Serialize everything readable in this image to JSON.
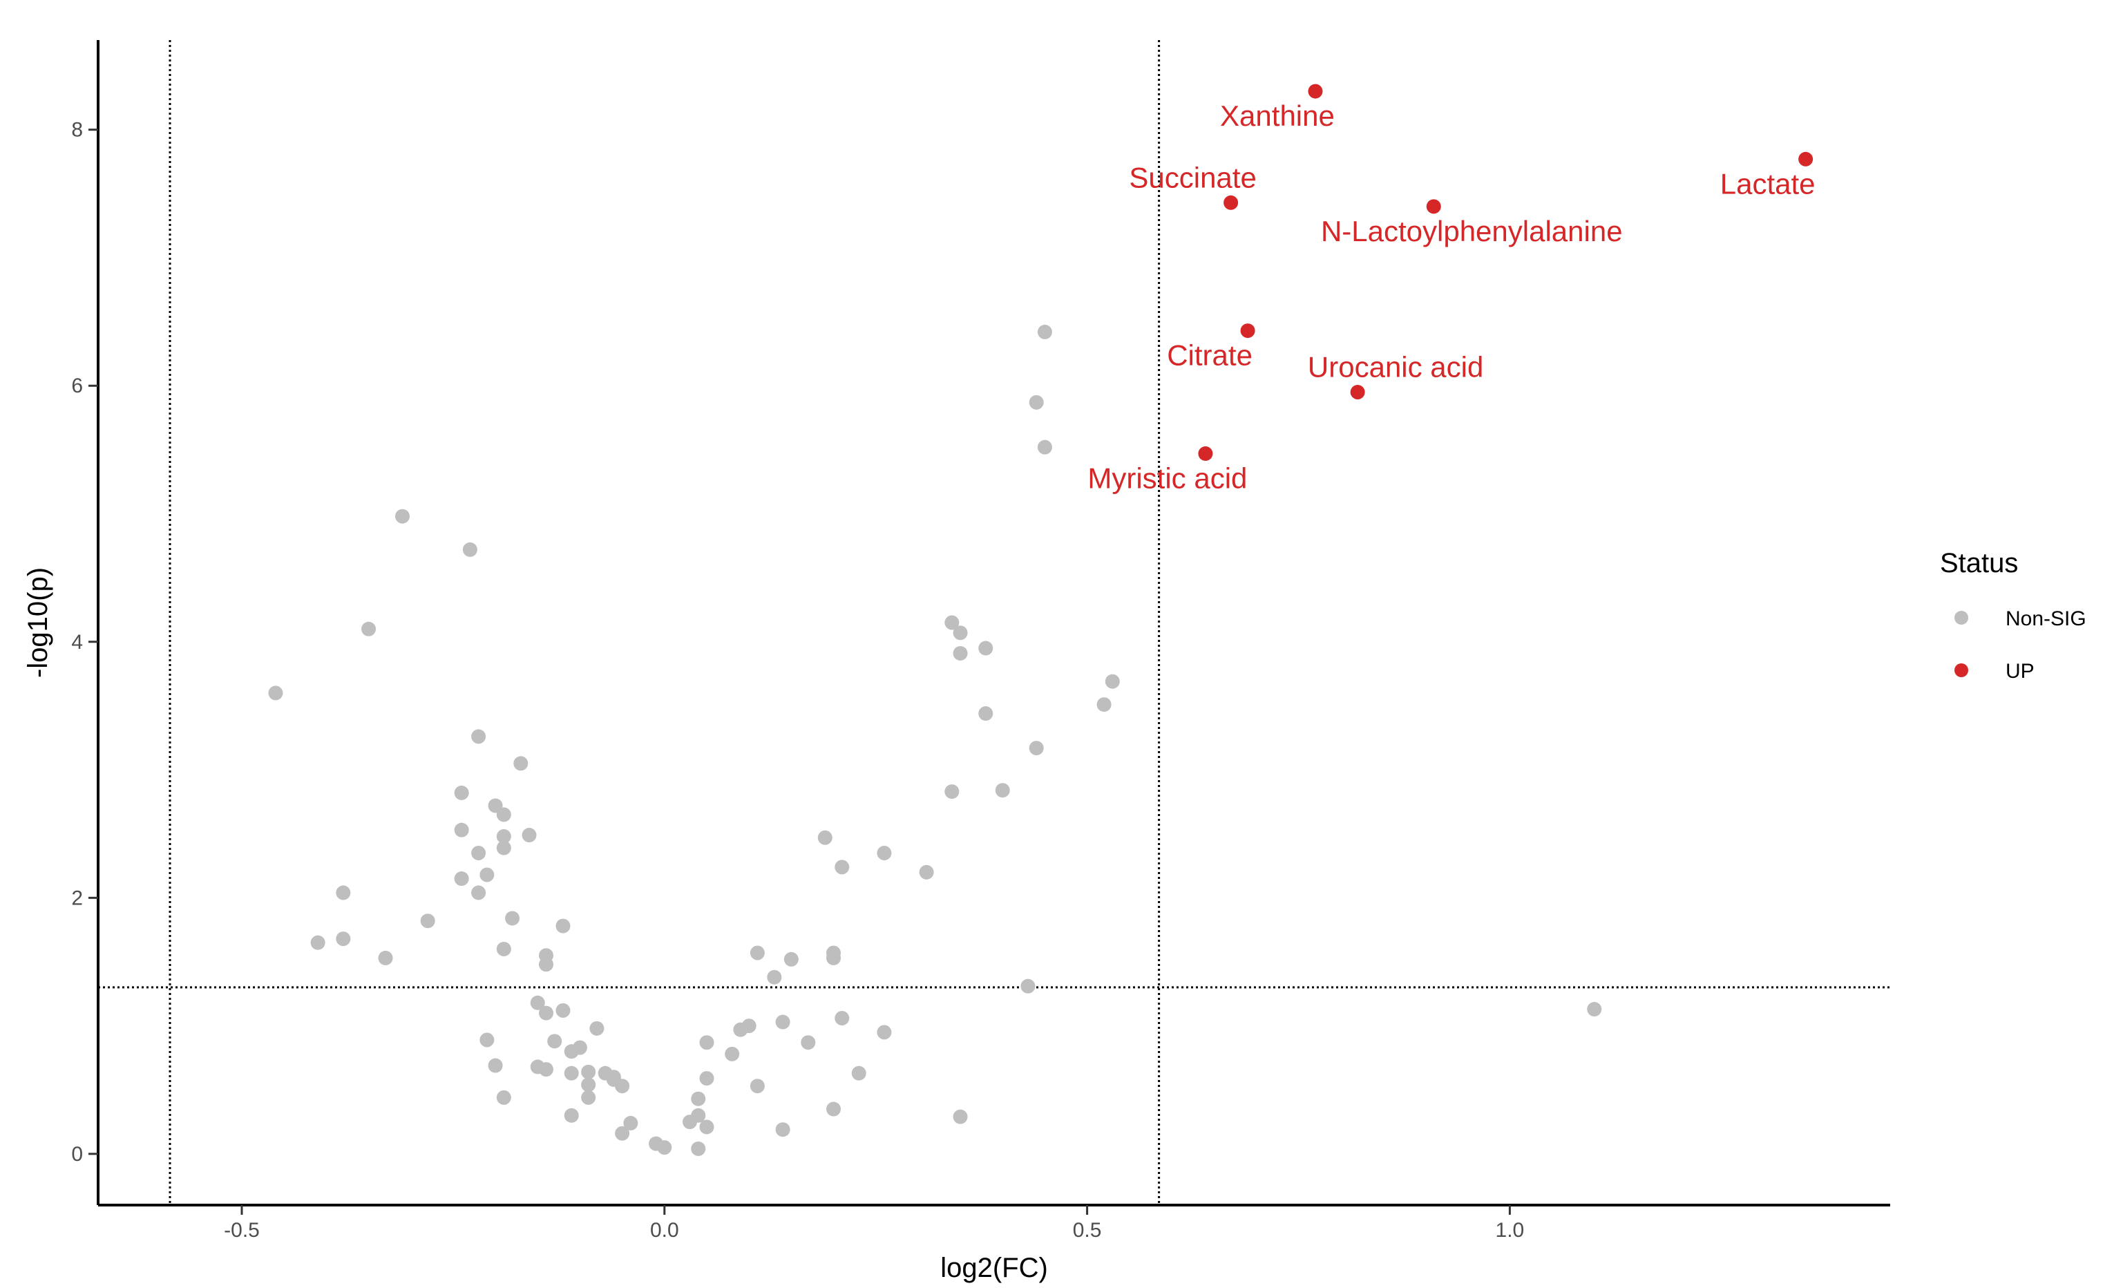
{
  "chart_data": {
    "type": "scatter",
    "title": "",
    "xlabel": "log2(FC)",
    "ylabel": "-log10(p)",
    "xlim": [
      -0.67,
      1.45
    ],
    "ylim": [
      -0.4,
      8.7
    ],
    "x_ticks": [
      -0.5,
      0.0,
      0.5,
      1.0
    ],
    "x_tick_labels": [
      "-0.5",
      "0.0",
      "0.5",
      "1.0"
    ],
    "y_ticks": [
      0,
      2,
      4,
      6,
      8
    ],
    "y_tick_labels": [
      "0",
      "2",
      "4",
      "6",
      "8"
    ],
    "grid": false,
    "thresholds": {
      "vertical": [
        -0.585,
        0.585
      ],
      "horizontal": 1.301
    },
    "legend": {
      "title": "Status",
      "position": "right",
      "entries": [
        {
          "label": "Non-SIG",
          "color": "#bebebe"
        },
        {
          "label": "UP",
          "color": "#d62728"
        }
      ]
    },
    "series": [
      {
        "name": "Non-SIG",
        "color": "#bebebe",
        "points": [
          [
            -0.46,
            3.6
          ],
          [
            -0.41,
            1.65
          ],
          [
            -0.38,
            2.04
          ],
          [
            -0.38,
            1.68
          ],
          [
            -0.35,
            4.1
          ],
          [
            -0.33,
            1.53
          ],
          [
            -0.31,
            4.98
          ],
          [
            -0.28,
            1.82
          ],
          [
            -0.24,
            2.15
          ],
          [
            -0.24,
            2.53
          ],
          [
            -0.24,
            2.82
          ],
          [
            -0.23,
            4.72
          ],
          [
            -0.22,
            2.04
          ],
          [
            -0.22,
            2.35
          ],
          [
            -0.22,
            3.26
          ],
          [
            -0.21,
            2.18
          ],
          [
            -0.21,
            0.89
          ],
          [
            -0.2,
            0.69
          ],
          [
            -0.2,
            2.72
          ],
          [
            -0.19,
            2.65
          ],
          [
            -0.19,
            2.48
          ],
          [
            -0.19,
            2.39
          ],
          [
            -0.19,
            1.6
          ],
          [
            -0.19,
            0.44
          ],
          [
            -0.18,
            1.84
          ],
          [
            -0.17,
            3.05
          ],
          [
            -0.16,
            2.49
          ],
          [
            -0.15,
            1.18
          ],
          [
            -0.15,
            0.68
          ],
          [
            -0.14,
            1.55
          ],
          [
            -0.14,
            1.48
          ],
          [
            -0.14,
            1.1
          ],
          [
            -0.14,
            0.66
          ],
          [
            -0.13,
            0.88
          ],
          [
            -0.12,
            1.78
          ],
          [
            -0.12,
            1.12
          ],
          [
            -0.11,
            0.63
          ],
          [
            -0.11,
            0.3
          ],
          [
            -0.11,
            0.8
          ],
          [
            -0.1,
            0.83
          ],
          [
            -0.09,
            0.54
          ],
          [
            -0.09,
            0.44
          ],
          [
            -0.09,
            0.64
          ],
          [
            -0.08,
            0.98
          ],
          [
            -0.07,
            0.63
          ],
          [
            -0.06,
            0.6
          ],
          [
            -0.06,
            0.58
          ],
          [
            -0.05,
            0.53
          ],
          [
            -0.05,
            0.16
          ],
          [
            -0.04,
            0.24
          ],
          [
            -0.01,
            0.08
          ],
          [
            0.0,
            0.05
          ],
          [
            0.03,
            0.25
          ],
          [
            0.04,
            0.3
          ],
          [
            0.04,
            0.43
          ],
          [
            0.04,
            0.04
          ],
          [
            0.05,
            0.87
          ],
          [
            0.05,
            0.59
          ],
          [
            0.05,
            0.21
          ],
          [
            0.08,
            0.78
          ],
          [
            0.09,
            0.97
          ],
          [
            0.1,
            1.0
          ],
          [
            0.11,
            0.53
          ],
          [
            0.11,
            1.57
          ],
          [
            0.13,
            1.38
          ],
          [
            0.14,
            1.03
          ],
          [
            0.14,
            0.19
          ],
          [
            0.15,
            1.52
          ],
          [
            0.17,
            0.87
          ],
          [
            0.19,
            2.47
          ],
          [
            0.2,
            1.53
          ],
          [
            0.2,
            1.57
          ],
          [
            0.2,
            0.35
          ],
          [
            0.21,
            2.24
          ],
          [
            0.21,
            1.06
          ],
          [
            0.23,
            0.63
          ],
          [
            0.26,
            0.95
          ],
          [
            0.26,
            2.35
          ],
          [
            0.31,
            2.2
          ],
          [
            0.34,
            4.15
          ],
          [
            0.34,
            2.83
          ],
          [
            0.35,
            4.07
          ],
          [
            0.35,
            3.91
          ],
          [
            0.35,
            0.29
          ],
          [
            0.38,
            3.44
          ],
          [
            0.38,
            3.95
          ],
          [
            0.4,
            2.84
          ],
          [
            0.43,
            1.31
          ],
          [
            0.44,
            5.87
          ],
          [
            0.44,
            3.17
          ],
          [
            0.45,
            6.42
          ],
          [
            0.45,
            5.52
          ],
          [
            0.52,
            3.51
          ],
          [
            0.53,
            3.69
          ],
          [
            1.1,
            1.13
          ]
        ]
      },
      {
        "name": "UP",
        "color": "#d62728",
        "points": [
          {
            "x": 0.77,
            "y": 8.3,
            "label": "Xanthine"
          },
          {
            "x": 0.67,
            "y": 7.43,
            "label": "Succinate"
          },
          {
            "x": 0.91,
            "y": 7.4,
            "label": "N-Lactoylphenylalanine"
          },
          {
            "x": 1.35,
            "y": 7.77,
            "label": "Lactate"
          },
          {
            "x": 0.69,
            "y": 6.43,
            "label": "Citrate"
          },
          {
            "x": 0.82,
            "y": 5.95,
            "label": "Urocanic acid"
          },
          {
            "x": 0.64,
            "y": 5.47,
            "label": "Myristic acid"
          }
        ]
      }
    ]
  }
}
